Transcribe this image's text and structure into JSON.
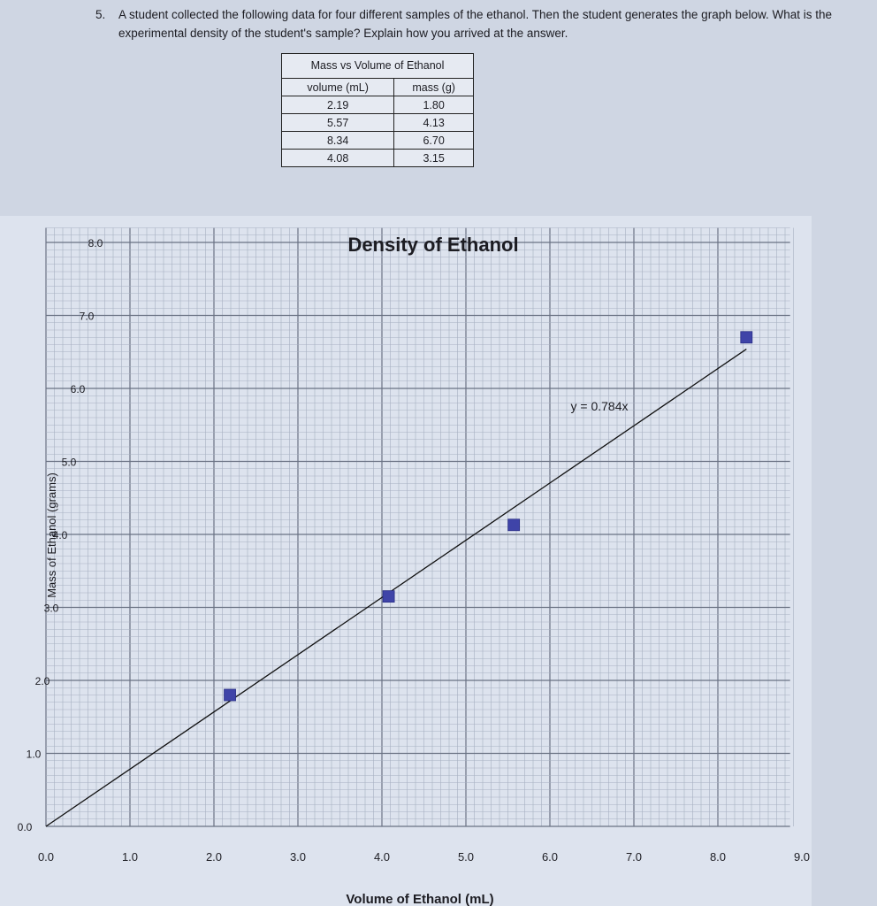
{
  "question": {
    "number": "5.",
    "text": "A student collected the following data for four different samples of the ethanol. Then the student generates the graph below. What is the experimental density of the student's sample? Explain how you arrived at the answer."
  },
  "table": {
    "title": "Mass vs Volume of Ethanol",
    "headers": [
      "volume (mL)",
      "mass (g)"
    ],
    "rows": [
      [
        "2.19",
        "1.80"
      ],
      [
        "5.57",
        "4.13"
      ],
      [
        "8.34",
        "6.70"
      ],
      [
        "4.08",
        "3.15"
      ]
    ]
  },
  "chart_data": {
    "type": "scatter",
    "title": "Density of Ethanol",
    "xlabel": "Volume of Ethanol (mL)",
    "ylabel": "Mass of Ethanol (grams)",
    "xlim": [
      0,
      9
    ],
    "ylim": [
      0,
      8
    ],
    "x_ticks": [
      "0.0",
      "1.0",
      "2.0",
      "3.0",
      "4.0",
      "5.0",
      "6.0",
      "7.0",
      "8.0",
      "9.0"
    ],
    "y_ticks": [
      "0.0",
      "1.0",
      "2.0",
      "3.0",
      "4.0",
      "5.0",
      "6.0",
      "7.0",
      "8.0"
    ],
    "points": [
      {
        "x": 2.19,
        "y": 1.8
      },
      {
        "x": 4.08,
        "y": 3.15
      },
      {
        "x": 5.57,
        "y": 4.13
      },
      {
        "x": 8.34,
        "y": 6.7
      }
    ],
    "trendline": {
      "label": "y = 0.784x",
      "slope": 0.784,
      "x_range": [
        0,
        8.34
      ]
    },
    "grid": true,
    "marker_color": "#3f44a8"
  }
}
